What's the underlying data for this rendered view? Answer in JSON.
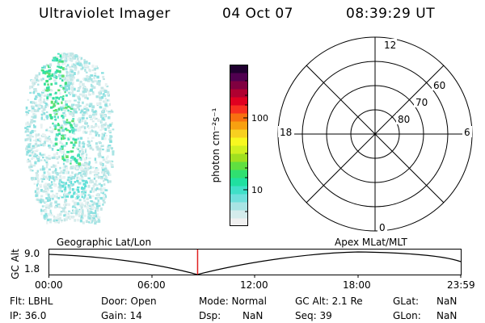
{
  "header": {
    "instrument": "Ultraviolet Imager",
    "date": "04 Oct 07",
    "time": "08:39:29 UT"
  },
  "colorbar": {
    "unit_label": "photon cm⁻²s⁻¹",
    "tick_labels": [
      "100",
      "10"
    ],
    "colors": [
      "#f0f0f0",
      "#d4ecec",
      "#a8e4e4",
      "#70e0dc",
      "#40e0c8",
      "#20e0a0",
      "#30e070",
      "#60e040",
      "#a0e020",
      "#d0f020",
      "#f8f820",
      "#f8d020",
      "#f8a010",
      "#f87010",
      "#f83020",
      "#e00020",
      "#b00030",
      "#800040",
      "#500050",
      "#200030"
    ]
  },
  "polar_grid": {
    "mlt_labels": {
      "top": "12",
      "bottom": "0",
      "left": "18",
      "right": "6"
    },
    "lat_labels": [
      "60",
      "70",
      "80"
    ]
  },
  "altitude_plot": {
    "y_axis_label": "GC Alt",
    "y_ticks": [
      "9.0",
      "1.8"
    ],
    "left_caption": "Geographic Lat/Lon",
    "right_caption": "Apex MLat/MLT",
    "x_ticks": [
      "00:00",
      "06:00",
      "12:00",
      "18:00",
      "23:59"
    ],
    "current_time_fraction": 0.3607
  },
  "info": {
    "flt": "Flt: LBHL",
    "door": "Door: Open",
    "mode": "Mode: Normal",
    "gc_alt": "GC Alt: 2.1 Re",
    "glat_label": "GLat:",
    "glat_value": "NaN",
    "ip": "IP: 36.0",
    "gain": "Gain: 14",
    "dsp_label": "Dsp:",
    "dsp_value": "NaN",
    "seq": "Seq: 39",
    "glon_label": "GLon:",
    "glon_value": "NaN"
  }
}
